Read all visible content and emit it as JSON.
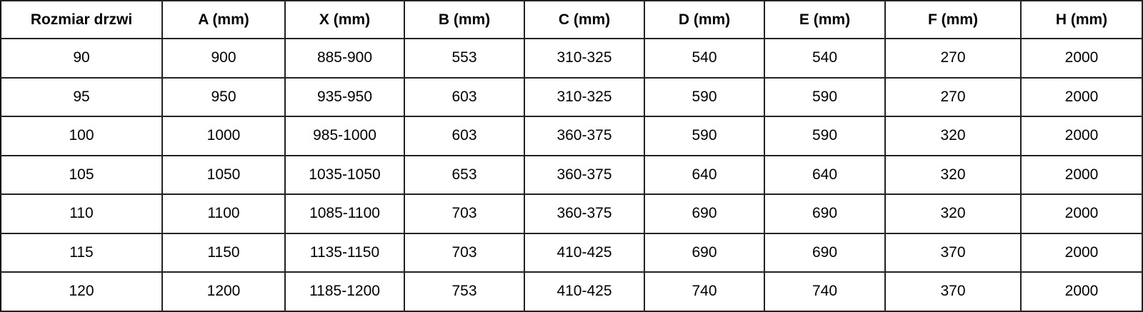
{
  "table": {
    "headers": [
      "Rozmiar drzwi",
      "A (mm)",
      "X (mm)",
      "B (mm)",
      "C (mm)",
      "D (mm)",
      "E (mm)",
      "F (mm)",
      "H (mm)"
    ],
    "rows": [
      [
        "90",
        "900",
        "885-900",
        "553",
        "310-325",
        "540",
        "540",
        "270",
        "2000"
      ],
      [
        "95",
        "950",
        "935-950",
        "603",
        "310-325",
        "590",
        "590",
        "270",
        "2000"
      ],
      [
        "100",
        "1000",
        "985-1000",
        "603",
        "360-375",
        "590",
        "590",
        "320",
        "2000"
      ],
      [
        "105",
        "1050",
        "1035-1050",
        "653",
        "360-375",
        "640",
        "640",
        "320",
        "2000"
      ],
      [
        "110",
        "1100",
        "1085-1100",
        "703",
        "360-375",
        "690",
        "690",
        "320",
        "2000"
      ],
      [
        "115",
        "1150",
        "1135-1150",
        "703",
        "410-425",
        "690",
        "690",
        "370",
        "2000"
      ],
      [
        "120",
        "1200",
        "1185-1200",
        "753",
        "410-425",
        "740",
        "740",
        "370",
        "2000"
      ]
    ]
  }
}
